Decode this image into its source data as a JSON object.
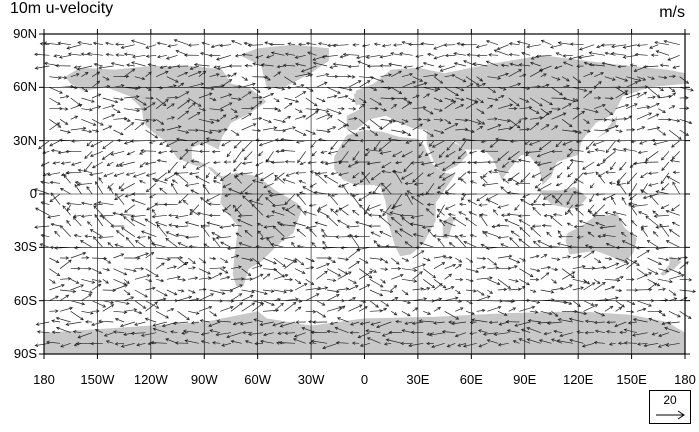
{
  "title": "10m u-velocity",
  "units": "m/s",
  "map": {
    "lon_range": [
      -180,
      180
    ],
    "lat_range": [
      -90,
      90
    ],
    "land_color": "#c8c8c8",
    "ocean_color": "#ffffff",
    "grid_color": "#000000",
    "lat_labels": [
      "90N",
      "60N",
      "30N",
      "0",
      "30S",
      "60S",
      "90S"
    ],
    "lon_labels": [
      "180",
      "150W",
      "120W",
      "90W",
      "60W",
      "30W",
      "0",
      "30E",
      "60E",
      "90E",
      "120E",
      "150E",
      "180"
    ]
  },
  "reference_vector": {
    "label": "20"
  }
}
